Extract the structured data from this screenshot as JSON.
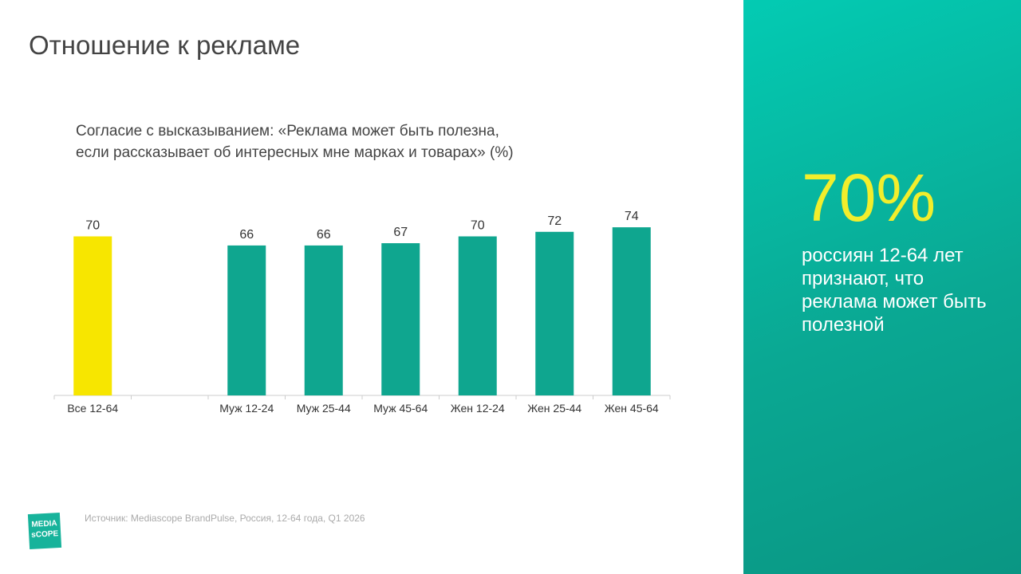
{
  "title": "Отношение к рекламе",
  "chart_data": {
    "type": "bar",
    "subtitle": [
      "Согласие с высказыванием: «Реклама может быть полезна,",
      "если рассказывает об интересных мне марках и товарах» (%)"
    ],
    "categories": [
      "Все 12-64",
      null,
      "Муж 12-24",
      "Муж 25-44",
      "Муж 45-64",
      "Жен 12-24",
      "Жен 25-44",
      "Жен 45-64"
    ],
    "values": [
      70,
      null,
      66,
      66,
      67,
      70,
      72,
      74
    ],
    "colors": [
      "#f7e600",
      null,
      "#0fa68f",
      "#0fa68f",
      "#0fa68f",
      "#0fa68f",
      "#0fa68f",
      "#0fa68f"
    ]
  },
  "callout": {
    "value": "70%",
    "text": "россиян 12-64 лет признают, что реклама может быть полезной"
  },
  "source": "Источник: Mediascope BrandPulse, Россия, 12-64 года, Q1 2026",
  "logo": [
    "MEDIA",
    "sCOPE"
  ]
}
